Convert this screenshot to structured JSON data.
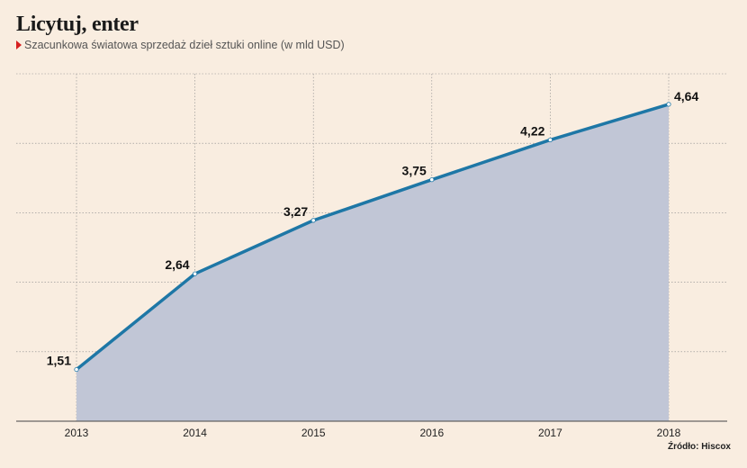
{
  "title": "Licytuj, enter",
  "subtitle": "Szacunkowa światowa sprzedaż dzieł sztuki online (w mld USD)",
  "source": "Źródło: Hiscox",
  "colors": {
    "line": "#1e77a6",
    "area": "#c1c6d6",
    "marker": "#d62020",
    "grid": "#8c8c8c",
    "background": "#f9ede0"
  },
  "chart_data": {
    "type": "area",
    "x": [
      "2013",
      "2014",
      "2015",
      "2016",
      "2017",
      "2018"
    ],
    "values": [
      1.51,
      2.64,
      3.27,
      3.75,
      4.22,
      4.64
    ],
    "data_labels": [
      "1,51",
      "2,64",
      "3,27",
      "3,75",
      "4,22",
      "4,64"
    ],
    "ylim": [
      0.9,
      5
    ],
    "grid": true,
    "legend": "none"
  }
}
